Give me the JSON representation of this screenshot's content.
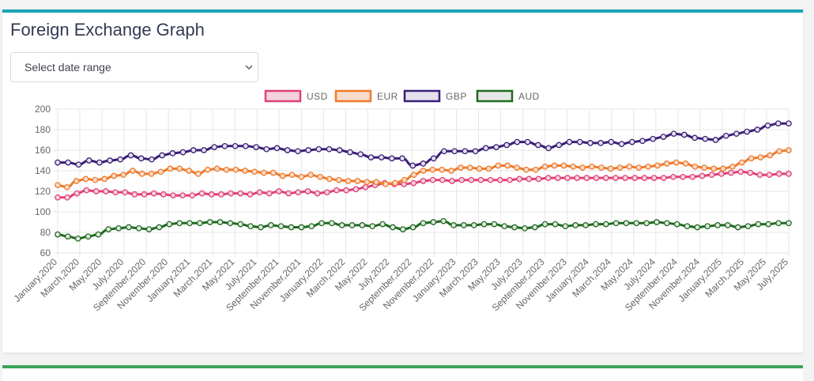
{
  "page": {
    "title": "Foreign Exchange Graph"
  },
  "filter": {
    "placeholder": "Select date range",
    "icon": "chevron-down-icon"
  },
  "colors": {
    "card_top_border": "#1aa3b3",
    "second_card_border": "#3aa55a"
  },
  "chart_data": {
    "type": "line",
    "title": "",
    "xlabel": "",
    "ylabel": "",
    "ylim": [
      60,
      200
    ],
    "yticks": [
      60,
      80,
      100,
      120,
      140,
      160,
      180,
      200
    ],
    "grid": true,
    "legend_position": "top",
    "x_tick_labels": [
      "January,2020",
      "March,2020",
      "May,2020",
      "July,2020",
      "September,2020",
      "November,2020",
      "January,2021",
      "March,2021",
      "May,2021",
      "July,2021",
      "September,2021",
      "November,2021",
      "January,2022",
      "March,2022",
      "May,2022",
      "July,2022",
      "September,2022",
      "November,2022",
      "January,2023",
      "March,2023",
      "May,2023",
      "July,2023",
      "September,2023",
      "November,2023",
      "January,2024",
      "March,2024",
      "May,2024",
      "July,2024",
      "September,2024",
      "November,2024",
      "January,2025",
      "March,2025",
      "May,2025",
      "July,2025"
    ],
    "series": [
      {
        "name": "USD",
        "color": "#e0407a",
        "fill": "#f2d3de",
        "values": [
          114,
          114,
          118,
          121,
          120,
          120,
          119,
          119,
          117,
          117,
          118,
          117,
          116,
          116,
          116,
          118,
          117,
          117,
          118,
          118,
          117,
          119,
          118,
          120,
          118,
          119,
          120,
          118,
          119,
          121,
          121,
          122,
          124,
          126,
          128,
          127,
          127,
          128,
          130,
          131,
          131,
          130,
          131,
          131,
          131,
          131,
          131,
          131,
          132,
          132,
          132,
          133,
          133,
          133,
          133,
          133,
          133,
          133,
          133,
          133,
          133,
          133,
          133,
          133,
          134,
          134,
          134,
          135,
          136,
          137,
          138,
          139,
          138,
          136,
          136,
          137,
          137
        ]
      },
      {
        "name": "EUR",
        "color": "#ee7a2a",
        "fill": "#f8dccc",
        "values": [
          126,
          124,
          130,
          132,
          131,
          132,
          135,
          136,
          140,
          137,
          137,
          139,
          142,
          142,
          140,
          137,
          141,
          142,
          141,
          141,
          140,
          139,
          138,
          138,
          135,
          136,
          134,
          136,
          134,
          132,
          131,
          130,
          130,
          129,
          129,
          127,
          128,
          131,
          136,
          140,
          141,
          141,
          140,
          143,
          143,
          142,
          142,
          145,
          145,
          143,
          141,
          141,
          144,
          145,
          145,
          144,
          143,
          144,
          143,
          142,
          143,
          144,
          143,
          144,
          145,
          147,
          148,
          147,
          144,
          143,
          142,
          142,
          144,
          148,
          152,
          153,
          155,
          159,
          160
        ]
      },
      {
        "name": "GBP",
        "color": "#3b1e78",
        "fill": "#e3e0ec",
        "values": [
          148,
          148,
          146,
          150,
          148,
          150,
          151,
          155,
          152,
          151,
          155,
          157,
          158,
          160,
          160,
          163,
          164,
          164,
          164,
          163,
          161,
          162,
          160,
          159,
          160,
          161,
          161,
          160,
          158,
          156,
          153,
          153,
          152,
          152,
          145,
          147,
          152,
          159,
          159,
          159,
          159,
          162,
          163,
          165,
          168,
          168,
          165,
          162,
          165,
          168,
          168,
          167,
          167,
          168,
          166,
          168,
          169,
          171,
          173,
          176,
          175,
          172,
          171,
          170,
          174,
          176,
          178,
          180,
          184,
          186,
          186
        ]
      },
      {
        "name": "AUD",
        "color": "#1e6b1e",
        "fill": "#e6e6e6",
        "values": [
          78,
          76,
          74,
          76,
          78,
          83,
          84,
          85,
          84,
          83,
          85,
          88,
          89,
          89,
          89,
          90,
          90,
          89,
          88,
          86,
          85,
          87,
          86,
          85,
          85,
          86,
          89,
          89,
          87,
          87,
          87,
          86,
          88,
          85,
          83,
          85,
          89,
          90,
          91,
          87,
          87,
          87,
          88,
          88,
          86,
          85,
          84,
          85,
          88,
          88,
          86,
          87,
          87,
          88,
          88,
          89,
          89,
          89,
          89,
          90,
          89,
          88,
          86,
          85,
          86,
          87,
          87,
          85,
          86,
          88,
          88,
          89,
          89
        ]
      }
    ]
  }
}
